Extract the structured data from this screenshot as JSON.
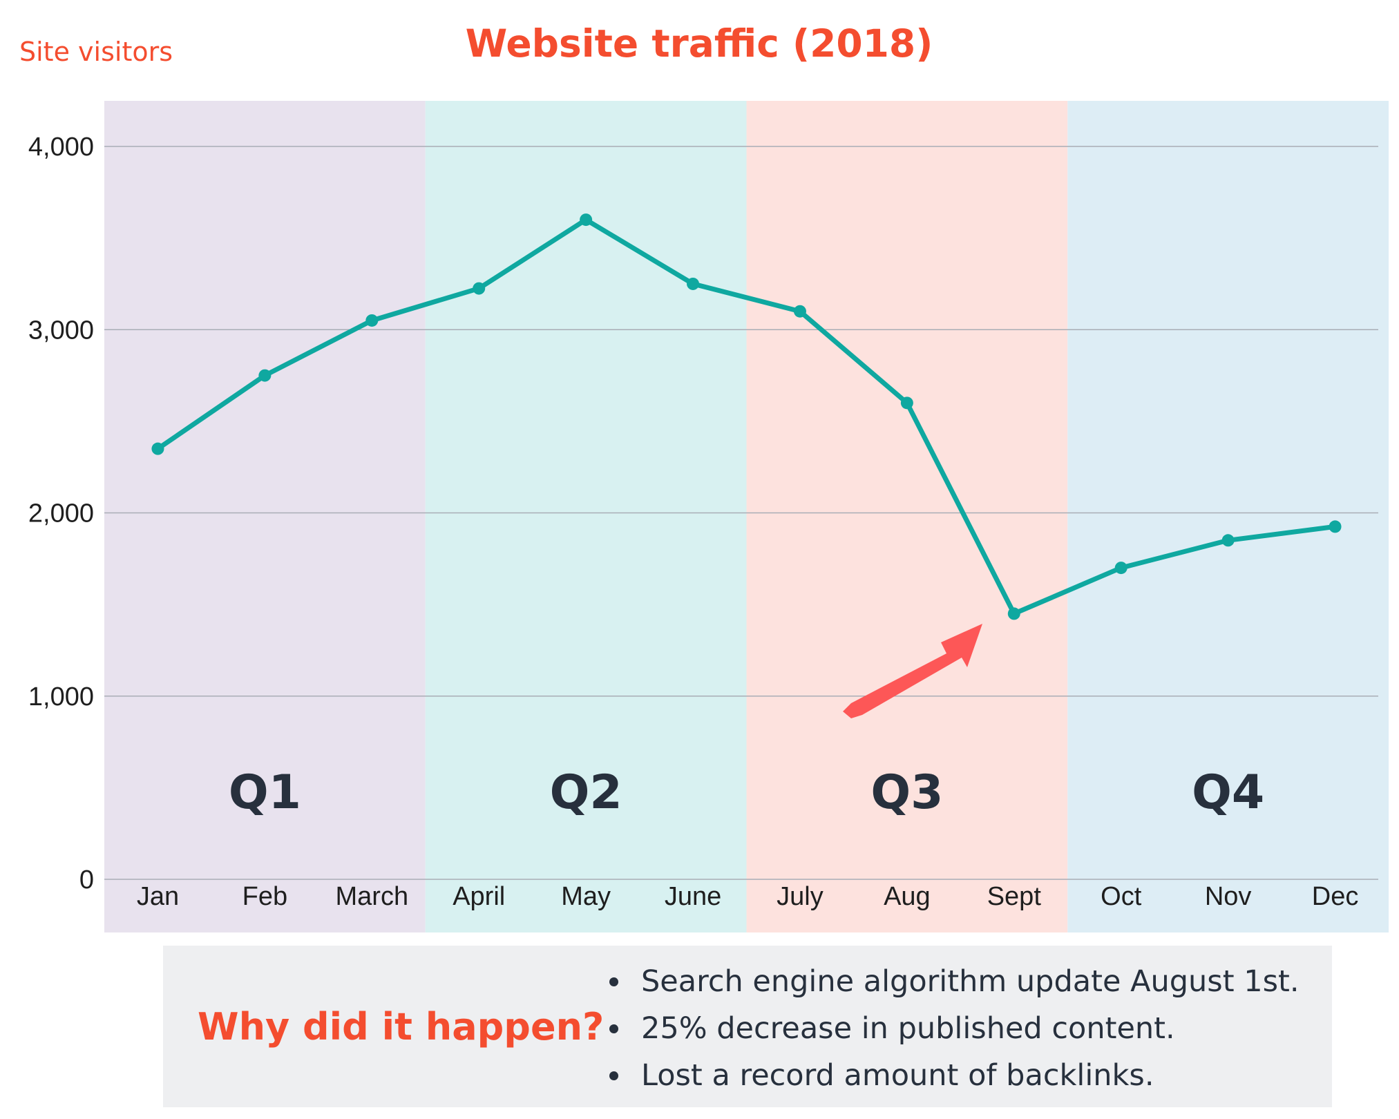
{
  "chart_data": {
    "type": "line",
    "title": "Website traffic (2018)",
    "ylabel": "Site visitors",
    "xlabel": "",
    "categories": [
      "Jan",
      "Feb",
      "March",
      "April",
      "May",
      "June",
      "July",
      "Aug",
      "Sept",
      "Oct",
      "Nov",
      "Dec"
    ],
    "series": [
      {
        "name": "Site visitors",
        "values": [
          2350,
          2750,
          3050,
          3225,
          3600,
          3250,
          3100,
          2600,
          1450,
          1700,
          1850,
          1925
        ],
        "color": "#0fa8a0"
      }
    ],
    "ylim": [
      0,
      4250
    ],
    "yticks": [
      0,
      1000,
      2000,
      3000,
      4000
    ],
    "ytick_labels": [
      "0",
      "1,000",
      "2,000",
      "3,000",
      "4,000"
    ],
    "grid": true,
    "quarters": [
      {
        "label": "Q1",
        "start": 0,
        "end": 2,
        "color": "#e8e2ee"
      },
      {
        "label": "Q2",
        "start": 3,
        "end": 5,
        "color": "#d8f1f1"
      },
      {
        "label": "Q3",
        "start": 6,
        "end": 8,
        "color": "#fde2de"
      },
      {
        "label": "Q4",
        "start": 9,
        "end": 11,
        "color": "#ddedf5"
      }
    ],
    "annotation": {
      "type": "arrow",
      "target": "Sept",
      "color": "#fd5757"
    }
  },
  "notes": {
    "heading": "Why did it happen?",
    "items": [
      "Search engine algorithm update August 1st.",
      "25% decrease in published content.",
      "Lost a record amount of backlinks."
    ]
  },
  "colors": {
    "accent": "#f44d2f",
    "line": "#0fa8a0",
    "text": "#27303d",
    "arrow": "#fd5757"
  }
}
